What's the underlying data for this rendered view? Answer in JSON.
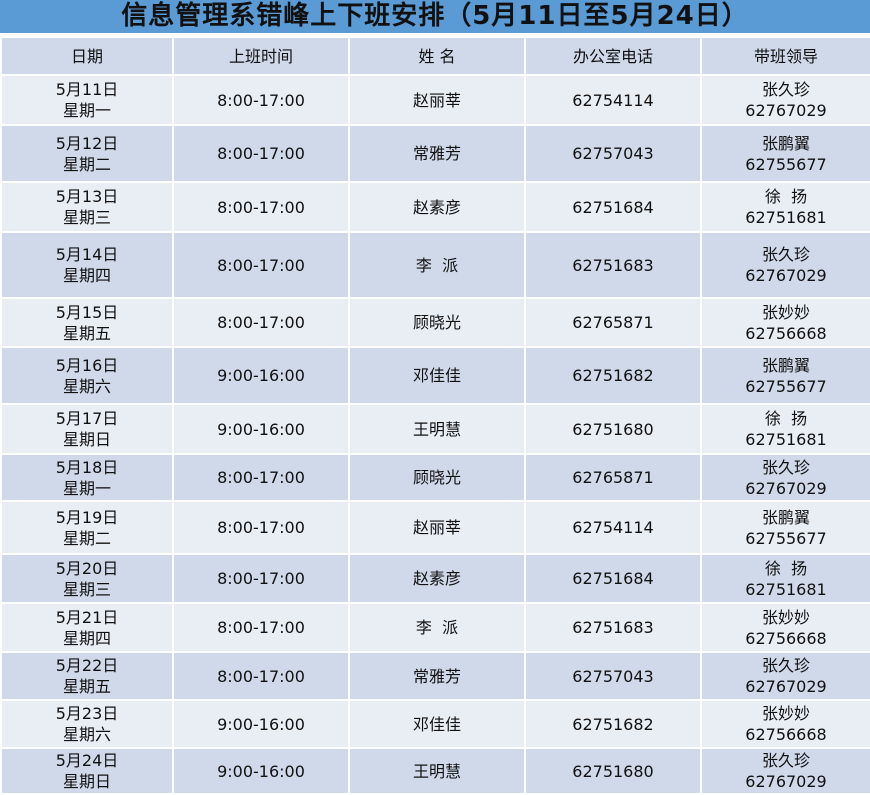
{
  "title": "信息管理系错峰上下班安排（5月11日至5月24日）",
  "colors": {
    "title_bar": "#5b9bd5",
    "row_light": "#e9edf4",
    "row_dark": "#d0d9ea"
  },
  "headers": [
    "日期",
    "上班时间",
    "姓 名",
    "办公室电话",
    "带班领导"
  ],
  "rows": [
    {
      "date": "5月11日",
      "weekday": "星期一",
      "time": "8:00-17:00",
      "name": "赵丽莘",
      "phone": "62754114",
      "leader": "张久珍",
      "leader_phone": "62767029"
    },
    {
      "date": "5月12日",
      "weekday": "星期二",
      "time": "8:00-17:00",
      "name": "常雅芳",
      "phone": "62757043",
      "leader": "张鹏翼",
      "leader_phone": "62755677"
    },
    {
      "date": "5月13日",
      "weekday": "星期三",
      "time": "8:00-17:00",
      "name": "赵素彦",
      "phone": "62751684",
      "leader": "徐  扬",
      "leader_phone": "62751681"
    },
    {
      "date": "5月14日",
      "weekday": "星期四",
      "time": "8:00-17:00",
      "name": "李  派",
      "phone": "62751683",
      "leader": "张久珍",
      "leader_phone": "62767029"
    },
    {
      "date": "5月15日",
      "weekday": "星期五",
      "time": "8:00-17:00",
      "name": "顾晓光",
      "phone": "62765871",
      "leader": "张妙妙",
      "leader_phone": "62756668"
    },
    {
      "date": "5月16日",
      "weekday": "星期六",
      "time": "9:00-16:00",
      "name": "邓佳佳",
      "phone": "62751682",
      "leader": "张鹏翼",
      "leader_phone": "62755677"
    },
    {
      "date": "5月17日",
      "weekday": "星期日",
      "time": "9:00-16:00",
      "name": "王明慧",
      "phone": "62751680",
      "leader": "徐  扬",
      "leader_phone": "62751681"
    },
    {
      "date": "5月18日",
      "weekday": "星期一",
      "time": "8:00-17:00",
      "name": "顾晓光",
      "phone": "62765871",
      "leader": "张久珍",
      "leader_phone": "62767029"
    },
    {
      "date": "5月19日",
      "weekday": "星期二",
      "time": "8:00-17:00",
      "name": "赵丽莘",
      "phone": "62754114",
      "leader": "张鹏翼",
      "leader_phone": "62755677"
    },
    {
      "date": "5月20日",
      "weekday": "星期三",
      "time": "8:00-17:00",
      "name": "赵素彦",
      "phone": "62751684",
      "leader": "徐  扬",
      "leader_phone": "62751681"
    },
    {
      "date": "5月21日",
      "weekday": "星期四",
      "time": "8:00-17:00",
      "name": "李  派",
      "phone": "62751683",
      "leader": "张妙妙",
      "leader_phone": "62756668"
    },
    {
      "date": "5月22日",
      "weekday": "星期五",
      "time": "8:00-17:00",
      "name": "常雅芳",
      "phone": "62757043",
      "leader": "张久珍",
      "leader_phone": "62767029"
    },
    {
      "date": "5月23日",
      "weekday": "星期六",
      "time": "9:00-16:00",
      "name": "邓佳佳",
      "phone": "62751682",
      "leader": "张妙妙",
      "leader_phone": "62756668"
    },
    {
      "date": "5月24日",
      "weekday": "星期日",
      "time": "9:00-16:00",
      "name": "王明慧",
      "phone": "62751680",
      "leader": "张久珍",
      "leader_phone": "62767029"
    }
  ]
}
